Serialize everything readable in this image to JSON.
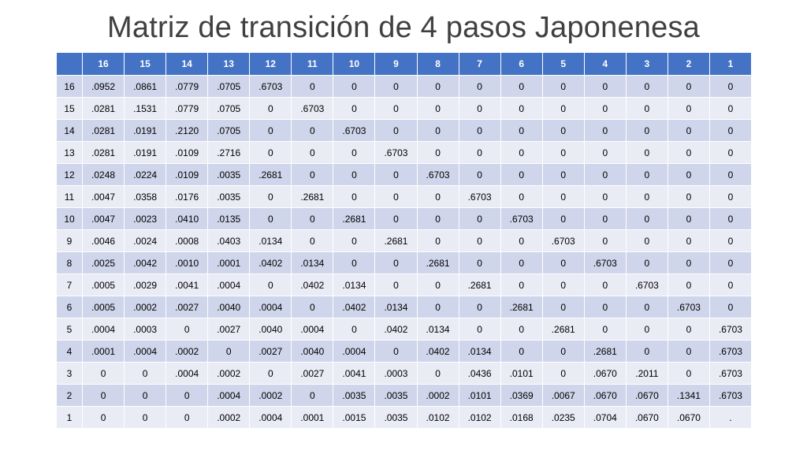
{
  "title": "Matriz de transición de 4 pasos Japonenesa",
  "table": {
    "corner": "",
    "columns": [
      "16",
      "15",
      "14",
      "13",
      "12",
      "11",
      "10",
      "9",
      "8",
      "7",
      "6",
      "5",
      "4",
      "3",
      "2",
      "1"
    ],
    "rows": [
      {
        "label": "16",
        "cells": [
          ".0952",
          ".0861",
          ".0779",
          ".0705",
          ".6703",
          "0",
          "0",
          "0",
          "0",
          "0",
          "0",
          "0",
          "0",
          "0",
          "0",
          "0"
        ]
      },
      {
        "label": "15",
        "cells": [
          ".0281",
          ".1531",
          ".0779",
          ".0705",
          "0",
          ".6703",
          "0",
          "0",
          "0",
          "0",
          "0",
          "0",
          "0",
          "0",
          "0",
          "0"
        ]
      },
      {
        "label": "14",
        "cells": [
          ".0281",
          ".0191",
          ".2120",
          ".0705",
          "0",
          "0",
          ".6703",
          "0",
          "0",
          "0",
          "0",
          "0",
          "0",
          "0",
          "0",
          "0"
        ]
      },
      {
        "label": "13",
        "cells": [
          ".0281",
          ".0191",
          ".0109",
          ".2716",
          "0",
          "0",
          "0",
          ".6703",
          "0",
          "0",
          "0",
          "0",
          "0",
          "0",
          "0",
          "0"
        ]
      },
      {
        "label": "12",
        "cells": [
          ".0248",
          ".0224",
          ".0109",
          ".0035",
          ".2681",
          "0",
          "0",
          "0",
          ".6703",
          "0",
          "0",
          "0",
          "0",
          "0",
          "0",
          "0"
        ]
      },
      {
        "label": "11",
        "cells": [
          ".0047",
          ".0358",
          ".0176",
          ".0035",
          "0",
          ".2681",
          "0",
          "0",
          "0",
          ".6703",
          "0",
          "0",
          "0",
          "0",
          "0",
          "0"
        ]
      },
      {
        "label": "10",
        "cells": [
          ".0047",
          ".0023",
          ".0410",
          ".0135",
          "0",
          "0",
          ".2681",
          "0",
          "0",
          "0",
          ".6703",
          "0",
          "0",
          "0",
          "0",
          "0"
        ]
      },
      {
        "label": "9",
        "cells": [
          ".0046",
          ".0024",
          ".0008",
          ".0403",
          ".0134",
          "0",
          "0",
          ".2681",
          "0",
          "0",
          "0",
          ".6703",
          "0",
          "0",
          "0",
          "0"
        ]
      },
      {
        "label": "8",
        "cells": [
          ".0025",
          ".0042",
          ".0010",
          ".0001",
          ".0402",
          ".0134",
          "0",
          "0",
          ".2681",
          "0",
          "0",
          "0",
          ".6703",
          "0",
          "0",
          "0"
        ]
      },
      {
        "label": "7",
        "cells": [
          ".0005",
          ".0029",
          ".0041",
          ".0004",
          "0",
          ".0402",
          ".0134",
          "0",
          "0",
          ".2681",
          "0",
          "0",
          "0",
          ".6703",
          "0",
          "0"
        ]
      },
      {
        "label": "6",
        "cells": [
          ".0005",
          ".0002",
          ".0027",
          ".0040",
          ".0004",
          "0",
          ".0402",
          ".0134",
          "0",
          "0",
          ".2681",
          "0",
          "0",
          "0",
          ".6703",
          "0"
        ]
      },
      {
        "label": "5",
        "cells": [
          ".0004",
          ".0003",
          "0",
          ".0027",
          ".0040",
          ".0004",
          "0",
          ".0402",
          ".0134",
          "0",
          "0",
          ".2681",
          "0",
          "0",
          "0",
          ".6703"
        ]
      },
      {
        "label": "4",
        "cells": [
          ".0001",
          ".0004",
          ".0002",
          "0",
          ".0027",
          ".0040",
          ".0004",
          "0",
          ".0402",
          ".0134",
          "0",
          "0",
          ".2681",
          "0",
          "0",
          ".6703"
        ]
      },
      {
        "label": "3",
        "cells": [
          "0",
          "0",
          ".0004",
          ".0002",
          "0",
          ".0027",
          ".0041",
          ".0003",
          "0",
          ".0436",
          ".0101",
          "0",
          ".0670",
          ".2011",
          "0",
          ".6703"
        ]
      },
      {
        "label": "2",
        "cells": [
          "0",
          "0",
          "0",
          ".0004",
          ".0002",
          "0",
          ".0035",
          ".0035",
          ".0002",
          ".0101",
          ".0369",
          ".0067",
          ".0670",
          ".0670",
          ".1341",
          ".6703"
        ]
      },
      {
        "label": "1",
        "cells": [
          "0",
          "0",
          "0",
          ".0002",
          ".0004",
          ".0001",
          ".0015",
          ".0035",
          ".0102",
          ".0102",
          ".0168",
          ".0235",
          ".0704",
          ".0670",
          ".0670",
          "."
        ]
      }
    ]
  }
}
